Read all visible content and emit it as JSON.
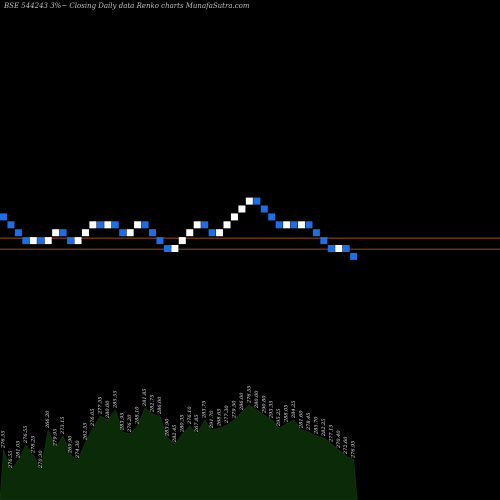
{
  "chart_data": {
    "type": "renko",
    "title": "BSE 544243 3%~  Closing Daily data  Renko  charts MunafaSutra.com",
    "colors": {
      "background": "#000000",
      "up_brick": "#ffffff",
      "down_brick": "#1e6fe6",
      "reference_line": "#c8642a",
      "volume_area": "#0a2a08"
    },
    "reference_levels": [
      281.6,
      276.7
    ],
    "bricks": [
      {
        "close": 288.6,
        "dir": "down"
      },
      {
        "close": 285.1,
        "dir": "down"
      },
      {
        "close": 281.6,
        "dir": "down"
      },
      {
        "close": 278.1,
        "dir": "down"
      },
      {
        "close": 281.6,
        "dir": "up"
      },
      {
        "close": 278.1,
        "dir": "down"
      },
      {
        "close": 281.6,
        "dir": "up"
      },
      {
        "close": 285.1,
        "dir": "up"
      },
      {
        "close": 281.6,
        "dir": "down"
      },
      {
        "close": 278.1,
        "dir": "down"
      },
      {
        "close": 281.6,
        "dir": "up"
      },
      {
        "close": 285.1,
        "dir": "up"
      },
      {
        "close": 288.6,
        "dir": "up"
      },
      {
        "close": 285.1,
        "dir": "down"
      },
      {
        "close": 288.6,
        "dir": "up"
      },
      {
        "close": 285.1,
        "dir": "down"
      },
      {
        "close": 281.6,
        "dir": "down"
      },
      {
        "close": 285.1,
        "dir": "up"
      },
      {
        "close": 288.6,
        "dir": "up"
      },
      {
        "close": 285.1,
        "dir": "down"
      },
      {
        "close": 281.6,
        "dir": "down"
      },
      {
        "close": 278.1,
        "dir": "down"
      },
      {
        "close": 274.6,
        "dir": "down"
      },
      {
        "close": 278.1,
        "dir": "up"
      },
      {
        "close": 281.6,
        "dir": "up"
      },
      {
        "close": 285.1,
        "dir": "up"
      },
      {
        "close": 288.6,
        "dir": "up"
      },
      {
        "close": 285.1,
        "dir": "down"
      },
      {
        "close": 281.6,
        "dir": "down"
      },
      {
        "close": 285.1,
        "dir": "up"
      },
      {
        "close": 288.6,
        "dir": "up"
      },
      {
        "close": 292.1,
        "dir": "up"
      },
      {
        "close": 295.6,
        "dir": "up"
      },
      {
        "close": 299.1,
        "dir": "up"
      },
      {
        "close": 295.6,
        "dir": "down"
      },
      {
        "close": 292.1,
        "dir": "down"
      },
      {
        "close": 288.6,
        "dir": "down"
      },
      {
        "close": 285.1,
        "dir": "down"
      },
      {
        "close": 288.6,
        "dir": "up"
      },
      {
        "close": 285.1,
        "dir": "down"
      },
      {
        "close": 288.6,
        "dir": "up"
      },
      {
        "close": 285.1,
        "dir": "down"
      },
      {
        "close": 281.6,
        "dir": "down"
      },
      {
        "close": 278.1,
        "dir": "down"
      },
      {
        "close": 274.6,
        "dir": "down"
      },
      {
        "close": 278.1,
        "dir": "up"
      },
      {
        "close": 274.6,
        "dir": "down"
      },
      {
        "close": 271.1,
        "dir": "down"
      }
    ],
    "volume": [
      50,
      30,
      40,
      55,
      45,
      30,
      70,
      52,
      64,
      45,
      40,
      58,
      72,
      84,
      80,
      90,
      68,
      66,
      74,
      92,
      86,
      84,
      62,
      56,
      66,
      74,
      66,
      80,
      70,
      72,
      75,
      80,
      88,
      95,
      90,
      85,
      80,
      72,
      76,
      80,
      70,
      68,
      64,
      62,
      56,
      50,
      44,
      40
    ],
    "volume_labels": [
      "276.55",
      "276.55",
      "281.05",
      "276.55",
      "278.25",
      "270.30",
      "266.20",
      "279.95",
      "273.15",
      "269.90",
      "274.30",
      "262.55",
      "276.05",
      "277.55",
      "280.00",
      "285.55",
      "283.95",
      "276.20",
      "288.10",
      "281.85",
      "282.75",
      "286.00",
      "283.90",
      "282.45",
      "280.35",
      "276.10",
      "267.85",
      "283.75",
      "291.70",
      "268.65",
      "277.30",
      "279.50",
      "286.00",
      "276.55",
      "280.00",
      "290.80",
      "293.35",
      "295.25",
      "288.05",
      "284.25",
      "281.60",
      "278.45",
      "285.70",
      "282.25",
      "277.15",
      "270.40",
      "272.60",
      "276.95"
    ]
  }
}
